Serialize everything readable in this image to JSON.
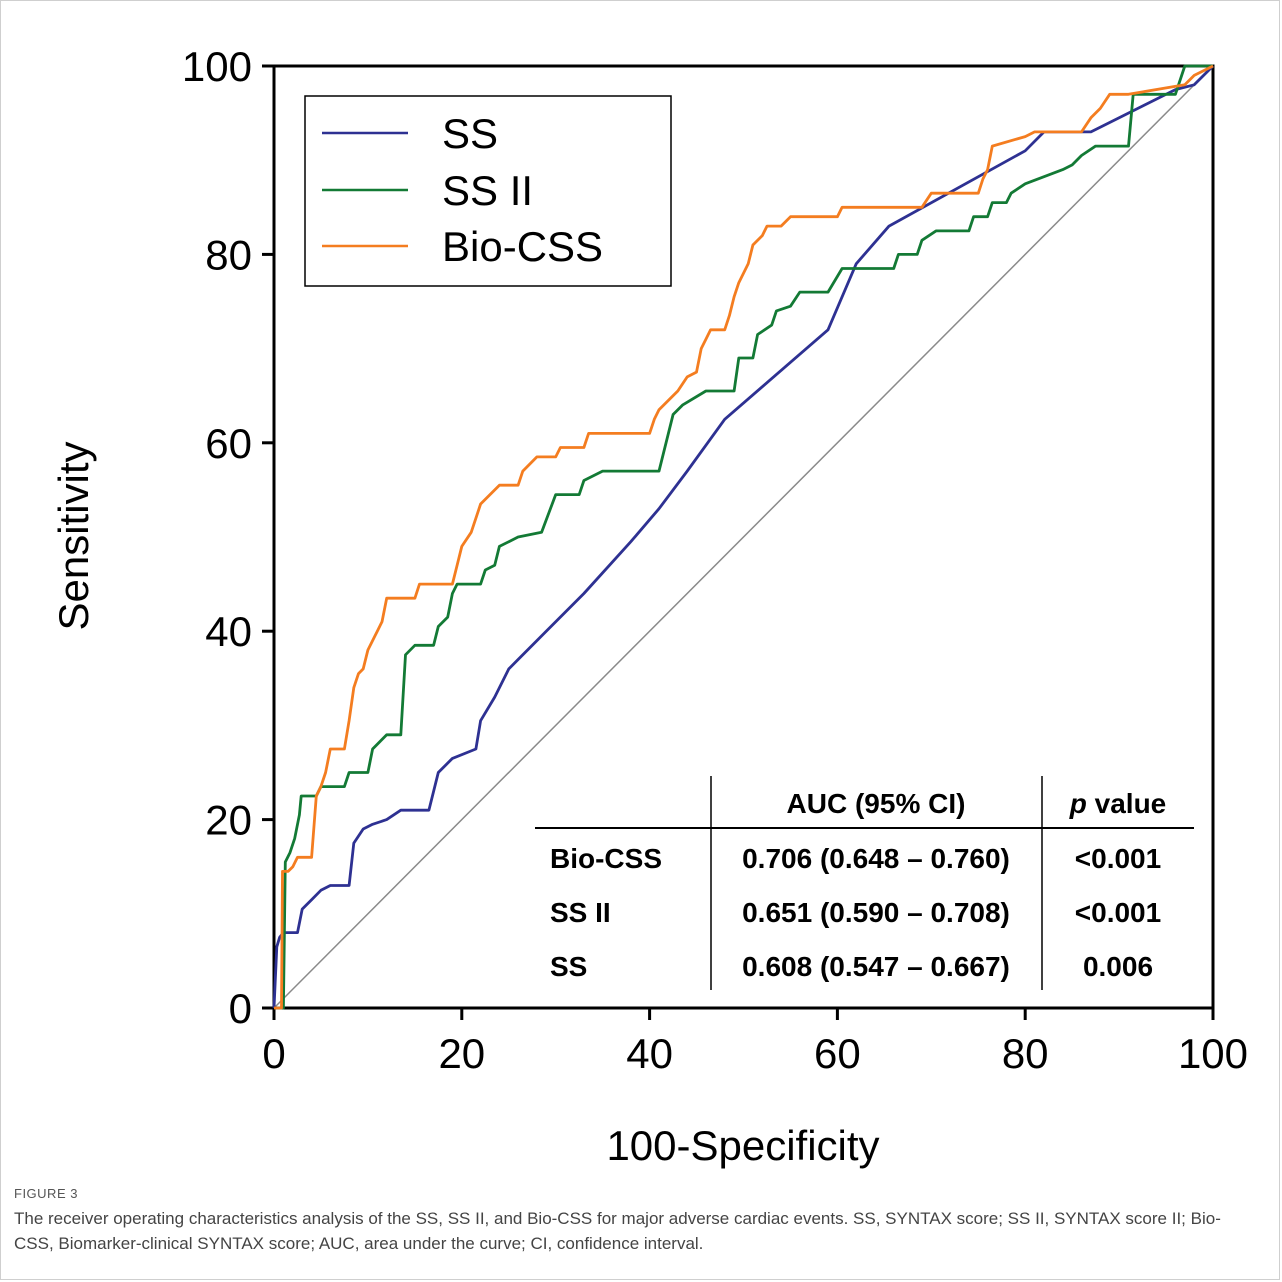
{
  "chart_data": {
    "type": "line",
    "xlabel": "100-Specificity",
    "ylabel": "Sensitivity",
    "xlim": [
      0,
      100
    ],
    "ylim": [
      0,
      100
    ],
    "x_ticks": [
      "0",
      "20",
      "40",
      "60",
      "80",
      "100"
    ],
    "y_ticks": [
      "0",
      "20",
      "40",
      "60",
      "80",
      "100"
    ],
    "grid": false,
    "legend_position": "top-left",
    "reference_line": [
      [
        0,
        0
      ],
      [
        100,
        100
      ]
    ],
    "series": [
      {
        "name": "SS",
        "color": "#2e3192",
        "points": [
          [
            0,
            0
          ],
          [
            0.3,
            6.5
          ],
          [
            0.6,
            7.5
          ],
          [
            1,
            8
          ],
          [
            2.5,
            8
          ],
          [
            3,
            10.5
          ],
          [
            4,
            11.5
          ],
          [
            5,
            12.5
          ],
          [
            6,
            13
          ],
          [
            8,
            13
          ],
          [
            8.5,
            17.5
          ],
          [
            9.5,
            19
          ],
          [
            10.5,
            19.5
          ],
          [
            12,
            20
          ],
          [
            13.5,
            21
          ],
          [
            16.5,
            21
          ],
          [
            17.5,
            25
          ],
          [
            19,
            26.5
          ],
          [
            21.5,
            27.5
          ],
          [
            22,
            30.5
          ],
          [
            23.5,
            33
          ],
          [
            25,
            36
          ],
          [
            26,
            37
          ],
          [
            28,
            39
          ],
          [
            33,
            44
          ],
          [
            38,
            49.5
          ],
          [
            41,
            53
          ],
          [
            44,
            57
          ],
          [
            48,
            62.5
          ],
          [
            59,
            72
          ],
          [
            62,
            79
          ],
          [
            65.5,
            83
          ],
          [
            80,
            91
          ],
          [
            82,
            93
          ],
          [
            87,
            93
          ],
          [
            96,
            97.5
          ],
          [
            98,
            98
          ],
          [
            100,
            100
          ]
        ]
      },
      {
        "name": "SS II",
        "color": "#137a35",
        "points": [
          [
            0,
            0
          ],
          [
            1,
            0
          ],
          [
            1.2,
            15.5
          ],
          [
            1.7,
            16.5
          ],
          [
            2.2,
            18
          ],
          [
            2.7,
            20.5
          ],
          [
            2.9,
            22.5
          ],
          [
            4.5,
            22.5
          ],
          [
            5,
            23.5
          ],
          [
            7.5,
            23.5
          ],
          [
            8,
            25
          ],
          [
            10,
            25
          ],
          [
            10.5,
            27.5
          ],
          [
            11.5,
            28.5
          ],
          [
            12,
            29
          ],
          [
            13.5,
            29
          ],
          [
            14,
            37.5
          ],
          [
            15,
            38.5
          ],
          [
            17,
            38.5
          ],
          [
            17.5,
            40.5
          ],
          [
            18.5,
            41.5
          ],
          [
            19,
            44
          ],
          [
            19.5,
            45
          ],
          [
            22,
            45
          ],
          [
            22.5,
            46.5
          ],
          [
            23.5,
            47
          ],
          [
            24,
            49
          ],
          [
            25,
            49.5
          ],
          [
            26,
            50
          ],
          [
            28.5,
            50.5
          ],
          [
            30,
            54.5
          ],
          [
            32.5,
            54.5
          ],
          [
            33,
            56
          ],
          [
            35,
            57
          ],
          [
            41,
            57
          ],
          [
            42,
            61
          ],
          [
            42.5,
            63
          ],
          [
            43.5,
            64
          ],
          [
            46,
            65.5
          ],
          [
            49,
            65.5
          ],
          [
            49.5,
            69
          ],
          [
            51,
            69
          ],
          [
            51.5,
            71.5
          ],
          [
            53,
            72.5
          ],
          [
            53.5,
            74
          ],
          [
            55,
            74.5
          ],
          [
            56,
            76
          ],
          [
            59,
            76
          ],
          [
            60.5,
            78.5
          ],
          [
            63,
            78.5
          ],
          [
            66,
            78.5
          ],
          [
            66.5,
            80
          ],
          [
            68.5,
            80
          ],
          [
            69,
            81.5
          ],
          [
            70.5,
            82.5
          ],
          [
            74,
            82.5
          ],
          [
            74.5,
            84
          ],
          [
            76,
            84
          ],
          [
            76.5,
            85.5
          ],
          [
            78,
            85.5
          ],
          [
            78.5,
            86.5
          ],
          [
            80,
            87.5
          ],
          [
            84,
            89
          ],
          [
            85,
            89.5
          ],
          [
            86,
            90.5
          ],
          [
            87.5,
            91.5
          ],
          [
            91,
            91.5
          ],
          [
            91.5,
            97
          ],
          [
            96,
            97
          ],
          [
            97,
            100
          ],
          [
            100,
            100
          ]
        ]
      },
      {
        "name": "Bio-CSS",
        "color": "#f47d20",
        "points": [
          [
            0,
            0
          ],
          [
            0.8,
            0
          ],
          [
            0.9,
            14.5
          ],
          [
            1.5,
            14.5
          ],
          [
            2,
            15
          ],
          [
            2.5,
            16
          ],
          [
            4,
            16
          ],
          [
            4.5,
            22.5
          ],
          [
            5,
            23.5
          ],
          [
            5.5,
            25
          ],
          [
            6,
            27.5
          ],
          [
            7.5,
            27.5
          ],
          [
            8,
            30.5
          ],
          [
            8.5,
            34
          ],
          [
            9,
            35.5
          ],
          [
            9.5,
            36
          ],
          [
            10,
            38
          ],
          [
            10.5,
            39
          ],
          [
            11,
            40
          ],
          [
            11.5,
            41
          ],
          [
            12,
            43.5
          ],
          [
            15,
            43.5
          ],
          [
            15.5,
            45
          ],
          [
            19,
            45
          ],
          [
            19.5,
            47
          ],
          [
            20,
            49
          ],
          [
            21,
            50.5
          ],
          [
            21.5,
            52
          ],
          [
            22,
            53.5
          ],
          [
            23,
            54.5
          ],
          [
            24,
            55.5
          ],
          [
            26,
            55.5
          ],
          [
            26.5,
            57
          ],
          [
            27.5,
            58
          ],
          [
            28,
            58.5
          ],
          [
            30,
            58.5
          ],
          [
            30.5,
            59.5
          ],
          [
            33,
            59.5
          ],
          [
            33.5,
            61
          ],
          [
            40,
            61
          ],
          [
            40.5,
            62.5
          ],
          [
            41,
            63.5
          ],
          [
            42,
            64.5
          ],
          [
            43,
            65.5
          ],
          [
            44,
            67
          ],
          [
            45,
            67.5
          ],
          [
            45.5,
            70
          ],
          [
            46,
            71
          ],
          [
            46.5,
            72
          ],
          [
            48,
            72
          ],
          [
            48.5,
            73.5
          ],
          [
            49,
            75.5
          ],
          [
            49.5,
            77
          ],
          [
            50.5,
            79
          ],
          [
            51,
            81
          ],
          [
            52,
            82
          ],
          [
            52.5,
            83
          ],
          [
            54,
            83
          ],
          [
            55,
            84
          ],
          [
            60,
            84
          ],
          [
            60.5,
            85
          ],
          [
            69,
            85
          ],
          [
            70,
            86.5
          ],
          [
            75,
            86.5
          ],
          [
            75.5,
            88
          ],
          [
            76,
            89
          ],
          [
            76.5,
            91.5
          ],
          [
            80,
            92.5
          ],
          [
            81,
            93
          ],
          [
            86,
            93
          ],
          [
            87,
            94.5
          ],
          [
            88,
            95.5
          ],
          [
            89,
            97
          ],
          [
            91,
            97
          ],
          [
            97,
            98
          ],
          [
            98,
            99
          ],
          [
            100,
            100
          ]
        ]
      }
    ],
    "table": {
      "headers": [
        "",
        "AUC (95% CI)",
        "p value"
      ],
      "rows": [
        {
          "label": "Bio-CSS",
          "auc": "0.706 (0.648 – 0.760)",
          "p": "<0.001"
        },
        {
          "label": "SS II",
          "auc": "0.651 (0.590 – 0.708)",
          "p": "<0.001"
        },
        {
          "label": "SS",
          "auc": "0.608 (0.547 – 0.667)",
          "p": "0.006"
        }
      ]
    }
  },
  "caption": {
    "label": "FIGURE 3",
    "text": "The receiver operating characteristics analysis of the SS, SS II, and Bio-CSS for major adverse cardiac events. SS, SYNTAX score; SS II, SYNTAX score II; Bio-CSS, Biomarker-clinical SYNTAX score; AUC, area under the curve; CI, confidence interval."
  }
}
